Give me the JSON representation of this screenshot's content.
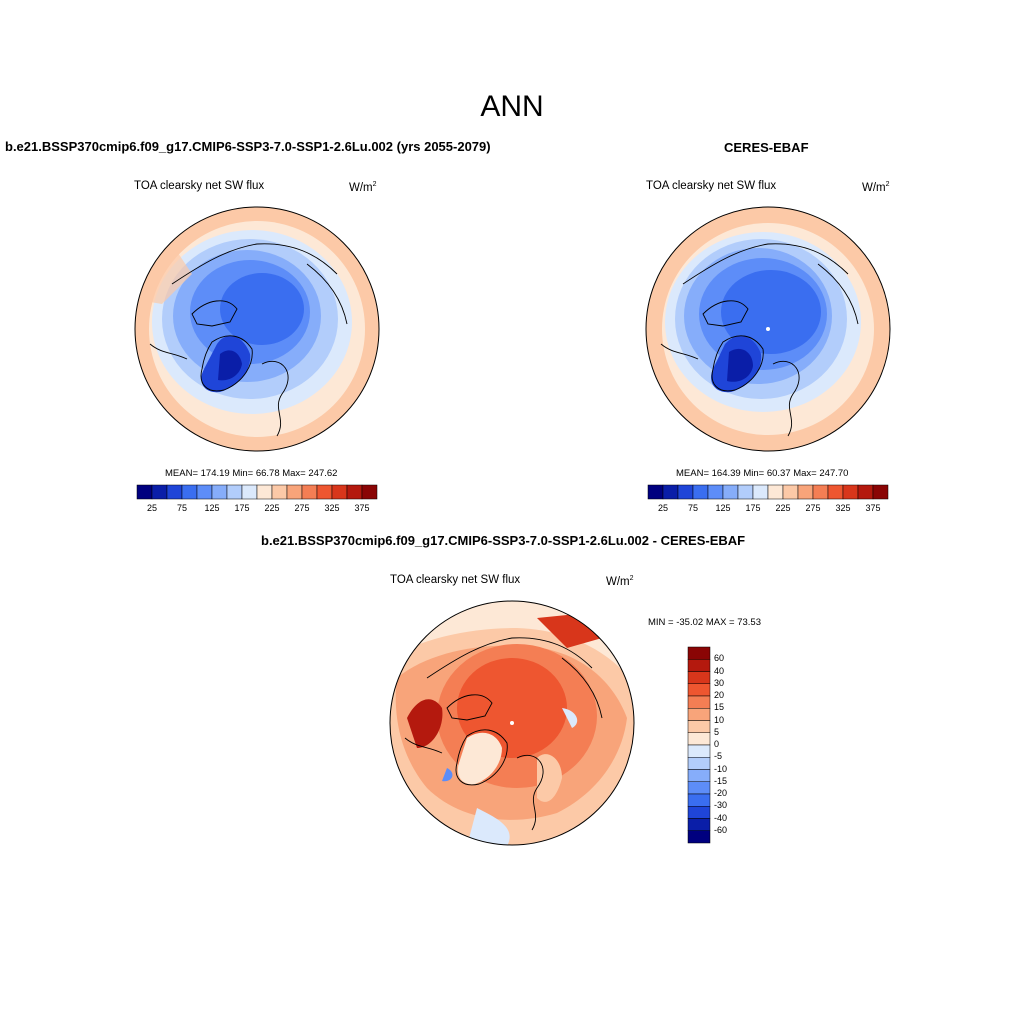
{
  "figure": {
    "title": "ANN"
  },
  "panels": {
    "test": {
      "title": "b.e21.BSSP370cmip6.f09_g17.CMIP6-SSP3-7.0-SSP1-2.6Lu.002 (yrs 2055-2079)",
      "variable": "TOA clearsky net SW flux",
      "units": "W/m",
      "units_sup": "2",
      "stats": "MEAN= 174.19  Min=  66.78  Max= 247.62"
    },
    "ref": {
      "title": "CERES-EBAF",
      "variable": "TOA clearsky net SW flux",
      "units": "W/m",
      "units_sup": "2",
      "stats": "MEAN= 164.39  Min=  60.37  Max= 247.70"
    },
    "diff": {
      "title": "b.e21.BSSP370cmip6.f09_g17.CMIP6-SSP3-7.0-SSP1-2.6Lu.002 - CERES-EBAF",
      "variable": "TOA clearsky net SW flux",
      "units": "W/m",
      "units_sup": "2",
      "stats": "MIN = -35.02 MAX =  73.53"
    }
  },
  "colorbar_abs": {
    "labels": [
      "25",
      "75",
      "125",
      "175",
      "225",
      "275",
      "325",
      "375"
    ],
    "colors": [
      "#00007f",
      "#0a1ea8",
      "#1f45d8",
      "#3a6ef0",
      "#5d8df8",
      "#86adfa",
      "#b2cdfb",
      "#dbe9fc",
      "#fde8d6",
      "#fcc9a7",
      "#f8a47a",
      "#f47e54",
      "#ee5630",
      "#d8361b",
      "#b4190e",
      "#8a0505"
    ]
  },
  "colorbar_diff": {
    "labels": [
      "60",
      "40",
      "30",
      "20",
      "15",
      "10",
      "5",
      "0",
      "-5",
      "-10",
      "-15",
      "-20",
      "-30",
      "-40",
      "-60"
    ],
    "colors": [
      "#8a0505",
      "#b4190e",
      "#d8361b",
      "#ee5630",
      "#f47e54",
      "#f8a47a",
      "#fcc9a7",
      "#fde8d6",
      "#dbe9fc",
      "#b2cdfb",
      "#86adfa",
      "#5d8df8",
      "#3a6ef0",
      "#1f45d8",
      "#0a1ea8",
      "#00007f"
    ]
  }
}
